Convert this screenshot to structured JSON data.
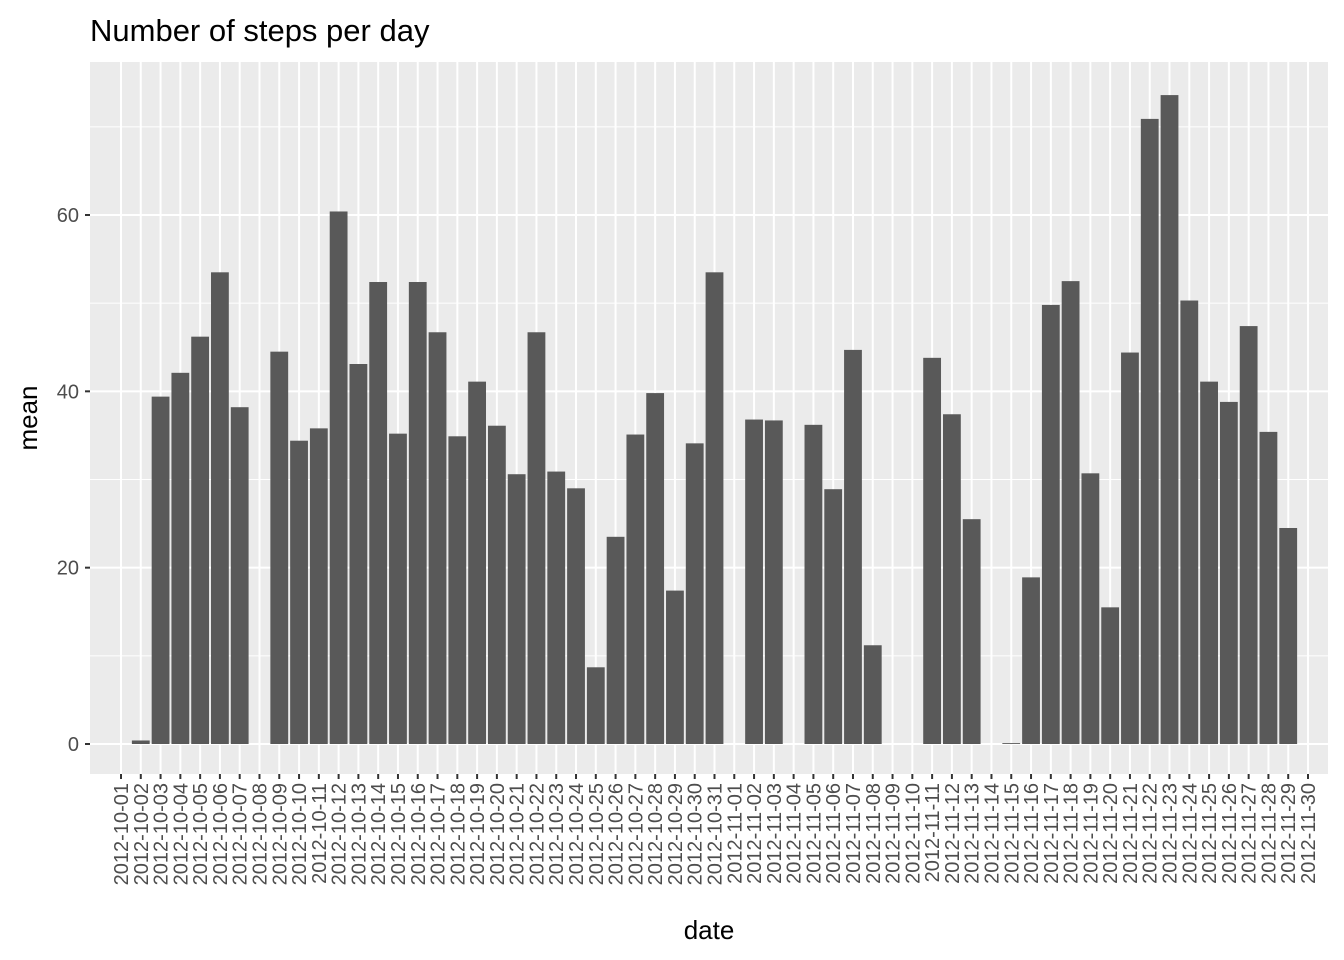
{
  "chart_data": {
    "type": "bar",
    "title": "Number of steps per day",
    "xlabel": "date",
    "ylabel": "mean",
    "ylim": [
      0,
      75
    ],
    "yticks": [
      0,
      20,
      40,
      60
    ],
    "grid": true,
    "legend": "none",
    "colors": {
      "bar": "#595959",
      "panel": "#ebebeb",
      "grid": "#ffffff",
      "tick": "#333333"
    },
    "categories": [
      "2012-10-01",
      "2012-10-02",
      "2012-10-03",
      "2012-10-04",
      "2012-10-05",
      "2012-10-06",
      "2012-10-07",
      "2012-10-08",
      "2012-10-09",
      "2012-10-10",
      "2012-10-11",
      "2012-10-12",
      "2012-10-13",
      "2012-10-14",
      "2012-10-15",
      "2012-10-16",
      "2012-10-17",
      "2012-10-18",
      "2012-10-19",
      "2012-10-20",
      "2012-10-21",
      "2012-10-22",
      "2012-10-23",
      "2012-10-24",
      "2012-10-25",
      "2012-10-26",
      "2012-10-27",
      "2012-10-28",
      "2012-10-29",
      "2012-10-30",
      "2012-10-31",
      "2012-11-01",
      "2012-11-02",
      "2012-11-03",
      "2012-11-04",
      "2012-11-05",
      "2012-11-06",
      "2012-11-07",
      "2012-11-08",
      "2012-11-09",
      "2012-11-10",
      "2012-11-11",
      "2012-11-12",
      "2012-11-13",
      "2012-11-14",
      "2012-11-15",
      "2012-11-16",
      "2012-11-17",
      "2012-11-18",
      "2012-11-19",
      "2012-11-20",
      "2012-11-21",
      "2012-11-22",
      "2012-11-23",
      "2012-11-24",
      "2012-11-25",
      "2012-11-26",
      "2012-11-27",
      "2012-11-28",
      "2012-11-29",
      "2012-11-30"
    ],
    "values": [
      null,
      0.4,
      39.4,
      42.1,
      46.2,
      53.5,
      38.2,
      null,
      44.5,
      34.4,
      35.8,
      60.4,
      43.1,
      52.4,
      35.2,
      52.4,
      46.7,
      34.9,
      41.1,
      36.1,
      30.6,
      46.7,
      30.9,
      29.0,
      8.7,
      23.5,
      35.1,
      39.8,
      17.4,
      34.1,
      53.5,
      null,
      36.8,
      36.7,
      null,
      36.2,
      28.9,
      44.7,
      11.2,
      null,
      null,
      43.8,
      37.4,
      25.5,
      null,
      0.1,
      18.9,
      49.8,
      52.5,
      30.7,
      15.5,
      44.4,
      70.9,
      73.6,
      50.3,
      41.1,
      38.8,
      47.4,
      35.4,
      24.5,
      null
    ]
  }
}
